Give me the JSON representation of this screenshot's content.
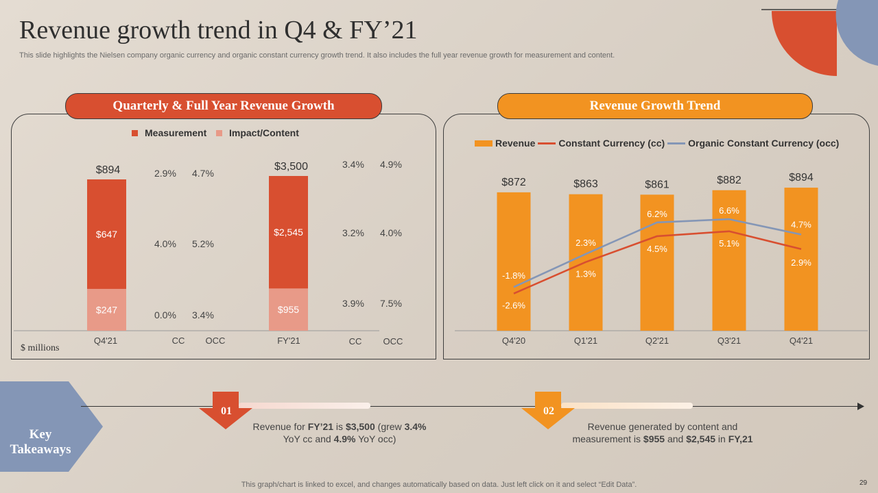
{
  "header": {
    "title": "Revenue growth trend in Q4 & FY’21",
    "subtitle": "This slide highlights the Nielsen company organic currency and organic constant currency growth trend. It also includes the full year revenue growth for measurement and content."
  },
  "colors": {
    "red": "#d84f30",
    "salmon": "#e89a88",
    "orange": "#f29321",
    "blue": "#8496b6",
    "line_red": "#d84f30",
    "line_blue": "#8496b6"
  },
  "left_panel": {
    "heading": "Quarterly & Full Year Revenue Growth",
    "unit_label": "$ millions",
    "growth_columns": [
      {
        "cc_top": "2.9%",
        "occ_top": "4.7%",
        "cc_mid": "4.0%",
        "occ_mid": "5.2%",
        "cc_bot": "0.0%",
        "occ_bot": "3.4%"
      },
      {
        "cc_top": "3.4%",
        "occ_top": "4.9%",
        "cc_mid": "3.2%",
        "occ_mid": "4.0%",
        "cc_bot": "3.9%",
        "occ_bot": "7.5%"
      }
    ]
  },
  "right_panel": {
    "heading": "Revenue Growth Trend"
  },
  "chart_data": [
    {
      "type": "bar",
      "stacked": true,
      "categories": [
        "Q4'21",
        "FY'21"
      ],
      "axis_labels": [
        "Q4'21",
        "CC",
        "OCC",
        "FY'21",
        "CC",
        "OCC"
      ],
      "series": [
        {
          "name": "Impact/Content",
          "values": [
            247,
            955
          ],
          "labels": [
            "$247",
            "$955"
          ]
        },
        {
          "name": "Measurement",
          "values": [
            647,
            2545
          ],
          "labels": [
            "$647",
            "$2,545"
          ]
        }
      ],
      "totals": [
        "$894",
        "$3,500"
      ],
      "legend": [
        "Measurement",
        "Impact/Content"
      ],
      "legend_position": "top"
    },
    {
      "type": "bar+line",
      "categories": [
        "Q4'20",
        "Q1'21",
        "Q2'21",
        "Q3'21",
        "Q4'21"
      ],
      "bars": {
        "name": "Revenue",
        "values": [
          872,
          863,
          861,
          882,
          894
        ],
        "labels": [
          "$872",
          "$863",
          "$861",
          "$882",
          "$894"
        ]
      },
      "lines": [
        {
          "name": "Constant Currency (cc)",
          "values": [
            -2.6,
            1.3,
            4.5,
            5.1,
            2.9
          ],
          "labels": [
            "-2.6%",
            "1.3%",
            "4.5%",
            "5.1%",
            "2.9%"
          ]
        },
        {
          "name": "Organic Constant Currency (occ)",
          "values": [
            -1.8,
            2.3,
            6.2,
            6.6,
            4.7
          ],
          "labels": [
            "-1.8%",
            "2.3%",
            "6.2%",
            "6.6%",
            "4.7%"
          ]
        }
      ],
      "legend": [
        "Revenue",
        "Constant Currency (cc)",
        "Organic Constant Currency (occ)"
      ],
      "legend_position": "top"
    }
  ],
  "takeaways": {
    "label": "Key Takeaways",
    "items": [
      {
        "num": "01",
        "pre": "Revenue for ",
        "b1": "FY’21",
        "mid1": " is ",
        "b2": "$3,500",
        "mid2": " (grew ",
        "b3": "3.4%",
        "line2_pre": "YoY cc and ",
        "b4": "4.9%",
        "post": " YoY occ)"
      },
      {
        "num": "02",
        "pre": "Revenue generated by content and",
        "line2_pre": "measurement is ",
        "b1": "$955",
        "mid1": " and ",
        "b2": "$2,545",
        "mid2": " in ",
        "b3": "FY,21"
      }
    ]
  },
  "footer": {
    "note": "This graph/chart is linked to excel,  and changes automatically based on data. Just left click on it and select “Edit Data”.",
    "page": "29"
  }
}
